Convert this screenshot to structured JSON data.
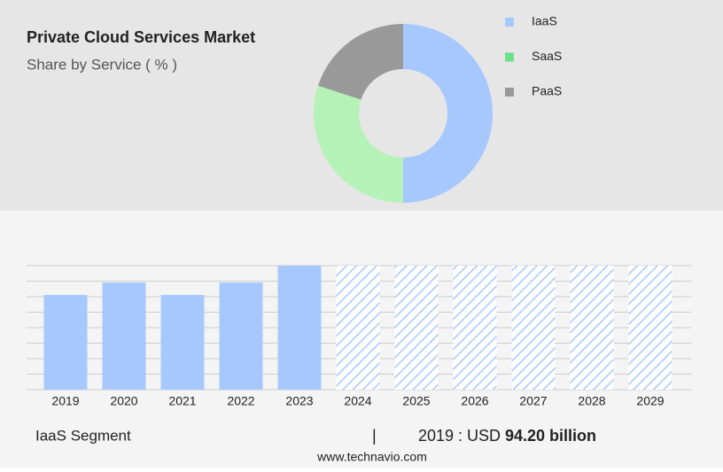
{
  "chart_data": [
    {
      "type": "pie",
      "title": "Private Cloud Services Market",
      "subtitle": "Share by Service ( % )",
      "categories": [
        "IaaS",
        "SaaS",
        "PaaS"
      ],
      "values": [
        50,
        30,
        20
      ],
      "colors": [
        "#a6c8ff",
        "#b5f2b7",
        "#999999"
      ],
      "legend_colors": [
        "#a6c8ff",
        "#6fe08a",
        "#999999"
      ],
      "donut": true
    },
    {
      "type": "bar",
      "categories": [
        "2019",
        "2020",
        "2021",
        "2022",
        "2023",
        "2024",
        "2025",
        "2026",
        "2027",
        "2028",
        "2029"
      ],
      "values": [
        94.2,
        106.5,
        94.2,
        106.5,
        123.3,
        null,
        null,
        null,
        null,
        null,
        null
      ],
      "forecast": [
        false,
        false,
        false,
        false,
        false,
        true,
        true,
        true,
        true,
        true,
        true
      ],
      "color": "#a6c8ff",
      "ylim": [
        0,
        123.3
      ],
      "yticks": [
        0,
        15.4,
        30.8,
        46.2,
        61.7,
        77.1,
        92.5,
        107.9,
        123.3
      ],
      "grid": true,
      "segment": "IaaS Segment",
      "separator": "|",
      "year_label": "2019 : USD",
      "highlight": "94.20 billion",
      "source": "www.technavio.com"
    }
  ]
}
